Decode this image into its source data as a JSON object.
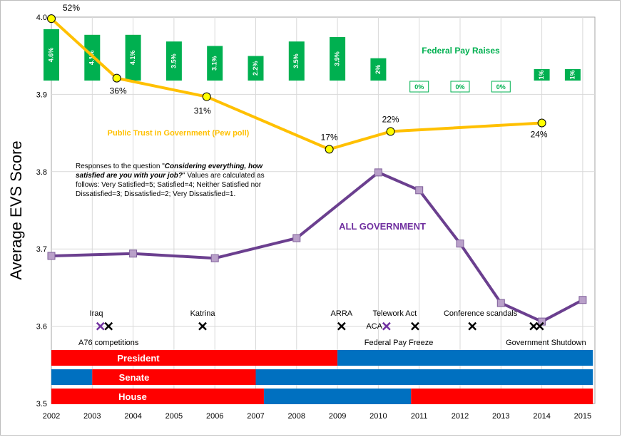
{
  "chart_data": {
    "type": "line",
    "ylabel": "Average EVS Score",
    "ylim": [
      3.5,
      4.0
    ],
    "yticks": [
      "3.5",
      "3.6",
      "3.7",
      "3.8",
      "3.9",
      "4.0"
    ],
    "xlim": [
      2002,
      2015
    ],
    "xticks": [
      "2002",
      "2003",
      "2004",
      "2005",
      "2006",
      "2007",
      "2008",
      "2009",
      "2010",
      "2011",
      "2012",
      "2013",
      "2014",
      "2015"
    ],
    "grid": true,
    "series": [
      {
        "name": "ALL GOVERNMENT",
        "color": "#6b3f8f",
        "marker_color": "#b9a0c9",
        "x": [
          2002,
          2004,
          2006,
          2008,
          2010,
          2011,
          2012,
          2013,
          2014,
          2015
        ],
        "y": [
          3.691,
          3.694,
          3.688,
          3.714,
          3.799,
          3.776,
          3.707,
          3.63,
          3.606,
          3.634
        ]
      },
      {
        "name": "Public Trust in Government (Pew poll)",
        "color": "#ffc000",
        "marker_color": "#ffff00",
        "x": [
          2002,
          2003.6,
          2005.8,
          2008.8,
          2010.3,
          2014
        ],
        "y": [
          3.998,
          3.921,
          3.897,
          3.829,
          3.852,
          3.863
        ],
        "labels": [
          "52%",
          "36%",
          "31%",
          "17%",
          "22%",
          "24%"
        ]
      }
    ],
    "pay_raises": {
      "title": "Federal Pay Raises",
      "color": "#00b050",
      "bars": [
        {
          "x": 2002,
          "label": "4.6%",
          "value": 4.6
        },
        {
          "x": 2003,
          "label": "4.1%",
          "value": 4.1
        },
        {
          "x": 2004,
          "label": "4.1%",
          "value": 4.1
        },
        {
          "x": 2005,
          "label": "3.5%",
          "value": 3.5
        },
        {
          "x": 2006,
          "label": "3.1%",
          "value": 3.1
        },
        {
          "x": 2007,
          "label": "2.2%",
          "value": 2.2
        },
        {
          "x": 2008,
          "label": "3.5%",
          "value": 3.5
        },
        {
          "x": 2009,
          "label": "3.9%",
          "value": 3.9
        },
        {
          "x": 2010,
          "label": "2%",
          "value": 2.0
        },
        {
          "x": 2011,
          "label": "0%",
          "value": 0
        },
        {
          "x": 2012,
          "label": "0%",
          "value": 0
        },
        {
          "x": 2013,
          "label": "0%",
          "value": 0
        },
        {
          "x": 2014,
          "label": "1%",
          "value": 1.0
        },
        {
          "x": 2015,
          "label": "1%",
          "value": 1.0
        }
      ]
    },
    "events": [
      {
        "x": 2003.2,
        "color": "#7030a0",
        "label": ""
      },
      {
        "x": 2003.4,
        "color": "#000000",
        "label": ""
      },
      {
        "x": 2005.7,
        "color": "#000000",
        "label": ""
      },
      {
        "x": 2009.1,
        "color": "#000000",
        "label": ""
      },
      {
        "x": 2010.2,
        "color": "#7030a0",
        "label": ""
      },
      {
        "x": 2010.9,
        "color": "#000000",
        "label": ""
      },
      {
        "x": 2012.3,
        "color": "#000000",
        "label": ""
      },
      {
        "x": 2013.8,
        "color": "#000000",
        "label": ""
      },
      {
        "x": 2013.95,
        "color": "#000000",
        "label": ""
      }
    ],
    "event_labels": [
      {
        "x": 2003.1,
        "row": "above",
        "text": "Iraq"
      },
      {
        "x": 2005.7,
        "row": "above",
        "text": "Katrina"
      },
      {
        "x": 2009.1,
        "row": "above",
        "text": "ARRA"
      },
      {
        "x": 2010.4,
        "row": "above",
        "text": "Telework Act"
      },
      {
        "x": 2012.5,
        "row": "above",
        "text": "Conference scandals"
      },
      {
        "x": 2009.9,
        "row": "mid",
        "text": "ACA"
      },
      {
        "x": 2003.4,
        "row": "below",
        "text": "A76 competitions"
      },
      {
        "x": 2010.5,
        "row": "below",
        "text": "Federal Pay Freeze"
      },
      {
        "x": 2014.1,
        "row": "below",
        "text": "Government  Shutdown"
      }
    ],
    "control_bands": [
      {
        "label": "President",
        "segments": [
          {
            "from": 2002,
            "to": 2009,
            "party": "R"
          },
          {
            "from": 2009,
            "to": 2015.25,
            "party": "D"
          }
        ]
      },
      {
        "label": "Senate",
        "segments": [
          {
            "from": 2002,
            "to": 2003,
            "party": "D"
          },
          {
            "from": 2003,
            "to": 2007,
            "party": "R"
          },
          {
            "from": 2007,
            "to": 2015.25,
            "party": "D"
          }
        ]
      },
      {
        "label": "House",
        "segments": [
          {
            "from": 2002,
            "to": 2007.2,
            "party": "R"
          },
          {
            "from": 2007.2,
            "to": 2010.8,
            "party": "D"
          },
          {
            "from": 2010.8,
            "to": 2015.25,
            "party": "R"
          }
        ]
      }
    ],
    "party_colors": {
      "R": "#ff0000",
      "D": "#0070c0"
    }
  },
  "annotation": {
    "line1_plain": "Responses to the question  \"",
    "line1_bold": "Considering everything, how satisfied are you with your job?",
    "line1_rest": "\"  Values are calculated  as follows: Very Satisfied=5;  Satisfied=4; Neither Satisfied  nor Dissatisfied=3;  Dissatisfied=2; Very Dissatisfied=1."
  }
}
